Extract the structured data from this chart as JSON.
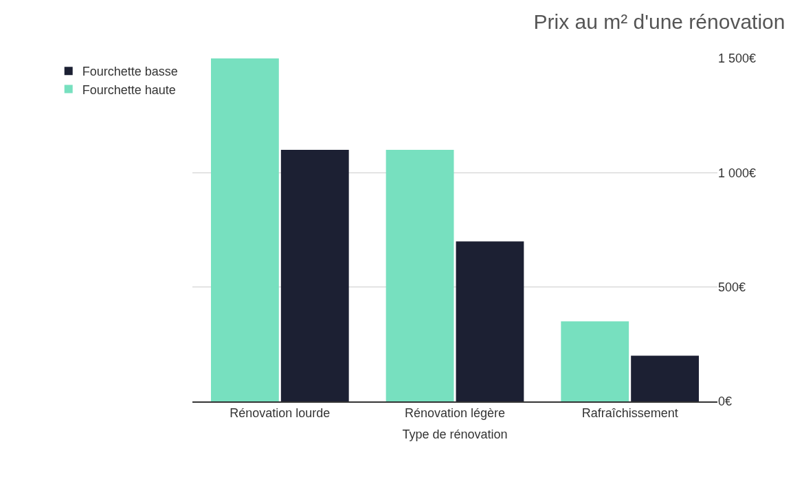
{
  "chart_data": {
    "type": "bar",
    "title": "Prix au m² d'une rénovation",
    "xlabel": "Type de rénovation",
    "categories": [
      "Rénovation lourde",
      "Rénovation légère",
      "Rafraîchissement"
    ],
    "series": [
      {
        "name": "Fourchette haute",
        "color": "#77e0bf",
        "values": [
          1500,
          1100,
          350
        ]
      },
      {
        "name": "Fourchette basse",
        "color": "#1c2033",
        "values": [
          1100,
          700,
          200
        ]
      }
    ],
    "ylim": [
      0,
      1500
    ],
    "yticks": [
      {
        "value": 0,
        "label": "0€"
      },
      {
        "value": 500,
        "label": "500€"
      },
      {
        "value": 1000,
        "label": "1 000€"
      },
      {
        "value": 1500,
        "label": "1 500€"
      }
    ],
    "grid": "y",
    "legend": "top left"
  }
}
